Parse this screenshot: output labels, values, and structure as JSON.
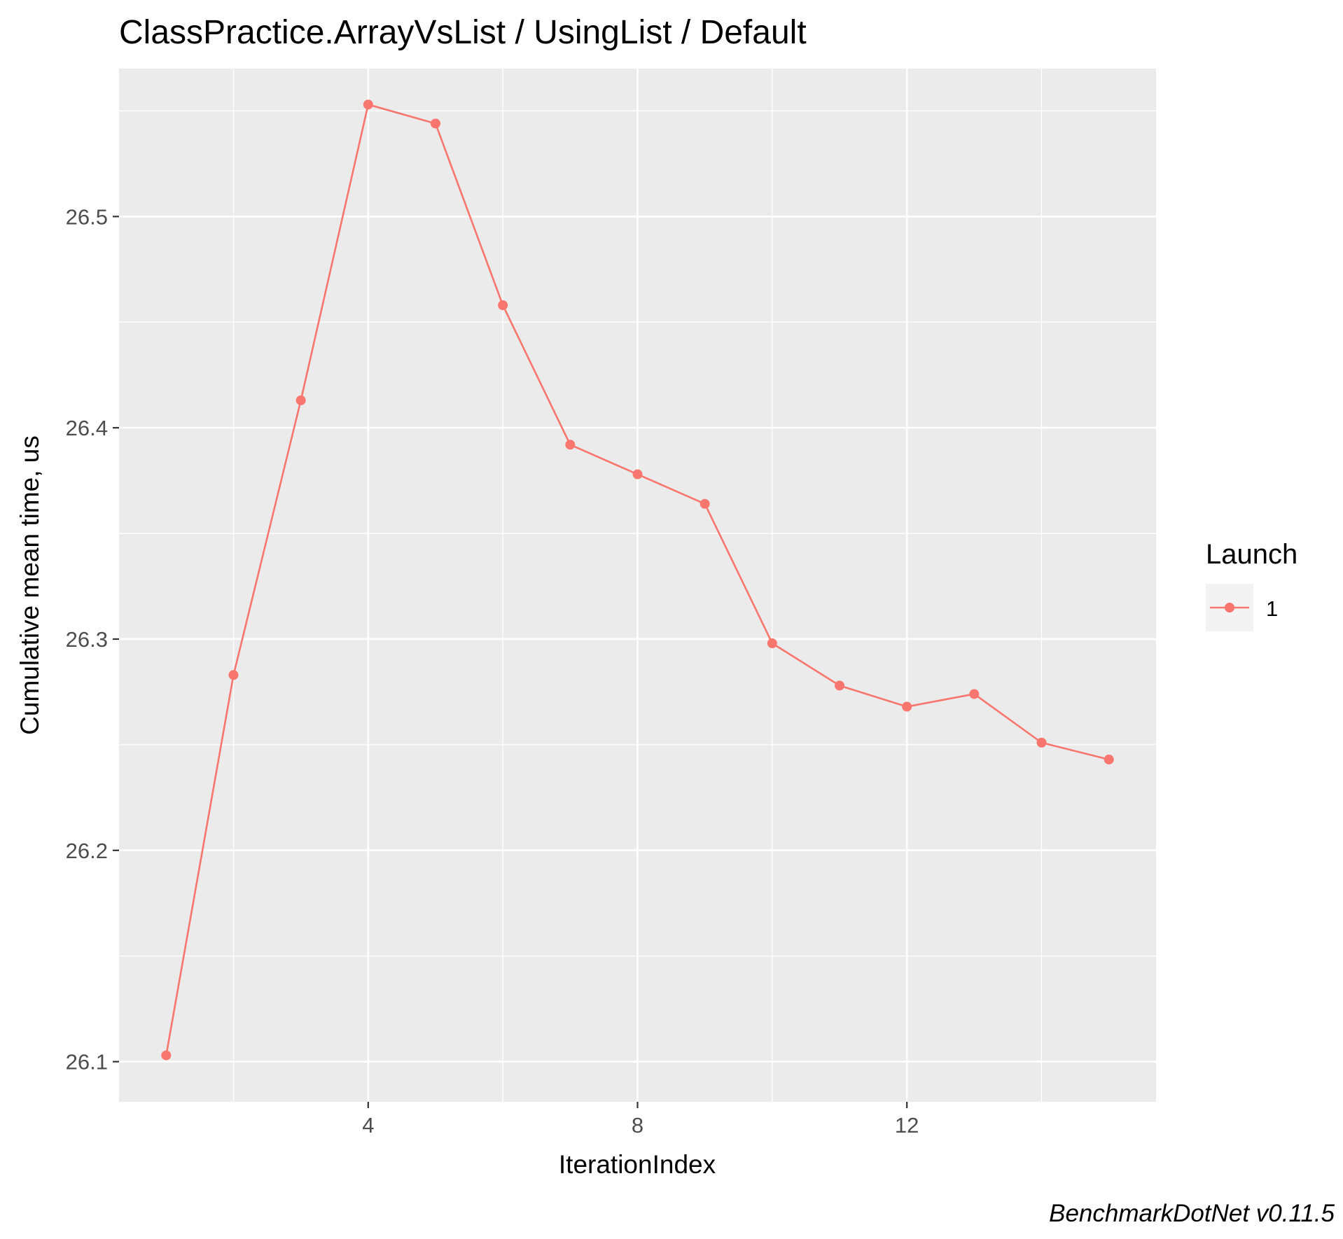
{
  "chart_data": {
    "type": "line",
    "title": "ClassPractice.ArrayVsList / UsingList / Default",
    "xlabel": "IterationIndex",
    "ylabel": "Cumulative mean time, us",
    "caption": "BenchmarkDotNet v0.11.5",
    "xlim": [
      0.3,
      15.7
    ],
    "ylim": [
      26.081,
      26.57
    ],
    "x_ticks": [
      4,
      8,
      12
    ],
    "x_tick_labels": [
      "4",
      "8",
      "12"
    ],
    "x_minor_ticks": [
      2,
      6,
      10,
      14
    ],
    "y_ticks": [
      26.1,
      26.2,
      26.3,
      26.4,
      26.5
    ],
    "y_tick_labels": [
      "26.1",
      "26.2",
      "26.3",
      "26.4",
      "26.5"
    ],
    "y_minor_ticks": [
      26.15,
      26.25,
      26.35,
      26.45,
      26.55
    ],
    "grid": true,
    "background_color": "#ebebeb",
    "legend": {
      "title": "Launch",
      "position": "right",
      "entries": [
        {
          "label": "1",
          "color": "#f8766d"
        }
      ]
    },
    "series": [
      {
        "name": "1",
        "color": "#f8766d",
        "x": [
          1,
          2,
          3,
          4,
          5,
          6,
          7,
          8,
          9,
          10,
          11,
          12,
          13,
          14,
          15
        ],
        "y": [
          26.103,
          26.283,
          26.413,
          26.553,
          26.544,
          26.458,
          26.392,
          26.378,
          26.364,
          26.298,
          26.278,
          26.268,
          26.274,
          26.251,
          26.243
        ]
      }
    ]
  }
}
